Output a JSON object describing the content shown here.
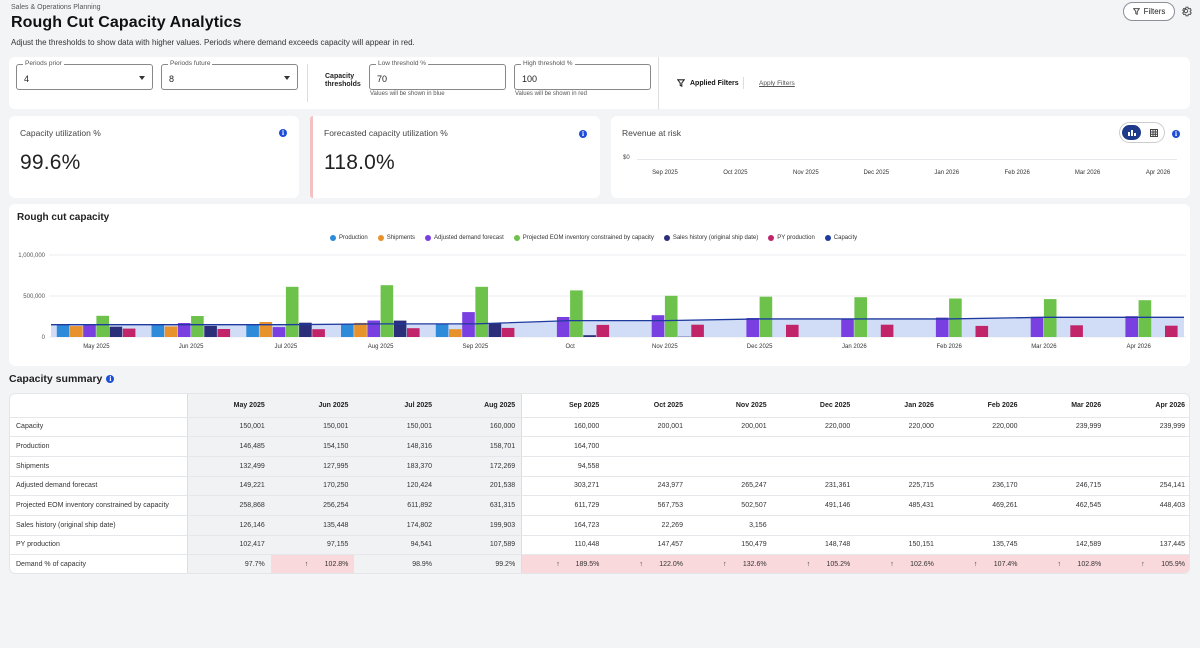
{
  "header": {
    "eyebrow": "Sales & Operations Planning",
    "title": "Rough Cut Capacity Analytics",
    "subtitle": "Adjust the thresholds to show data with higher values. Periods where demand exceeds capacity will appear in red.",
    "filters_label": "Filters"
  },
  "controls": {
    "periods_prior": {
      "label": "Periods prior",
      "value": "4"
    },
    "periods_future": {
      "label": "Periods future",
      "value": "8"
    },
    "capacity_thresholds_line1": "Capacity",
    "capacity_thresholds_line2": "thresholds",
    "low_threshold": {
      "label": "Low threshold %",
      "value": "70",
      "help": "Values will be shown in blue"
    },
    "high_threshold": {
      "label": "High threshold %",
      "value": "100",
      "help": "Values will be shown in red"
    },
    "applied_filters": "Applied Filters",
    "apply_filters": "Apply Filters"
  },
  "kpis": {
    "utilization": {
      "title": "Capacity utilization %",
      "value": "99.6%"
    },
    "forecasted": {
      "title": "Forecasted capacity utilization %",
      "value": "118.0%"
    },
    "revenue": {
      "title": "Revenue at risk",
      "y_label": "$0",
      "x_labels": [
        "Sep 2025",
        "Oct 2025",
        "Nov 2025",
        "Dec 2025",
        "Jan 2026",
        "Feb 2026",
        "Mar 2026",
        "Apr 2026"
      ]
    }
  },
  "colors": {
    "production": "#2e8bd9",
    "shipments": "#e8922c",
    "adjusted_demand": "#7a3fe0",
    "projected_eom": "#6cc24a",
    "sales_history": "#2b2f7a",
    "py_production": "#c2246a",
    "capacity": "#1e3a9e",
    "alert": "#f9d9dc"
  },
  "chart_data": {
    "type": "bar",
    "title": "Rough cut capacity",
    "categories": [
      "May 2025",
      "Jun 2025",
      "Jul 2025",
      "Aug 2025",
      "Sep 2025",
      "Oct",
      "Nov 2025",
      "Dec 2025",
      "Jan 2026",
      "Feb 2026",
      "Mar 2026",
      "Apr 2026"
    ],
    "ylim": [
      0,
      1000000
    ],
    "yticks": [
      "0",
      "500,000",
      "1,000,000"
    ],
    "series": [
      {
        "name": "Production",
        "key": "production",
        "values": [
          146485,
          154150,
          148316,
          158701,
          164700,
          null,
          null,
          null,
          null,
          null,
          null,
          null
        ]
      },
      {
        "name": "Shipments",
        "key": "shipments",
        "values": [
          132499,
          127995,
          183370,
          172269,
          94558,
          null,
          null,
          null,
          null,
          null,
          null,
          null
        ]
      },
      {
        "name": "Adjusted demand forecast",
        "key": "adjusted_demand",
        "values": [
          149221,
          170250,
          120424,
          201538,
          303271,
          243977,
          265247,
          231361,
          225715,
          236170,
          246715,
          254141
        ]
      },
      {
        "name": "Projected EOM inventory constrained by capacity",
        "key": "projected_eom",
        "values": [
          258868,
          256254,
          611892,
          631315,
          611729,
          567753,
          502507,
          491146,
          485431,
          469261,
          462545,
          448403
        ]
      },
      {
        "name": "Sales history (original ship date)",
        "key": "sales_history",
        "values": [
          126146,
          135448,
          174802,
          199903,
          164723,
          22269,
          3156,
          null,
          null,
          null,
          null,
          null
        ]
      },
      {
        "name": "PY production",
        "key": "py_production",
        "values": [
          102417,
          97155,
          94541,
          107589,
          110448,
          147457,
          150479,
          148748,
          150151,
          135745,
          142589,
          137445
        ]
      },
      {
        "name": "Capacity",
        "key": "capacity",
        "type": "area",
        "values": [
          150001,
          150001,
          150001,
          160000,
          160000,
          200001,
          200001,
          220000,
          220000,
          220000,
          239999,
          239999
        ]
      }
    ]
  },
  "summary": {
    "title": "Capacity summary",
    "columns": [
      "May 2025",
      "Jun 2025",
      "Jul 2025",
      "Aug 2025",
      "Sep 2025",
      "Oct 2025",
      "Nov 2025",
      "Dec 2025",
      "Jan 2026",
      "Feb 2026",
      "Mar 2026",
      "Apr 2026"
    ],
    "rows": [
      {
        "label": "Capacity",
        "values": [
          "150,001",
          "150,001",
          "150,001",
          "160,000",
          "160,000",
          "200,001",
          "200,001",
          "220,000",
          "220,000",
          "220,000",
          "239,999",
          "239,999"
        ]
      },
      {
        "label": "Production",
        "values": [
          "146,485",
          "154,150",
          "148,316",
          "158,701",
          "164,700",
          "",
          "",
          "",
          "",
          "",
          "",
          ""
        ]
      },
      {
        "label": "Shipments",
        "values": [
          "132,499",
          "127,995",
          "183,370",
          "172,269",
          "94,558",
          "",
          "",
          "",
          "",
          "",
          "",
          ""
        ]
      },
      {
        "label": "Adjusted demand forecast",
        "values": [
          "149,221",
          "170,250",
          "120,424",
          "201,538",
          "303,271",
          "243,977",
          "265,247",
          "231,361",
          "225,715",
          "236,170",
          "246,715",
          "254,141"
        ]
      },
      {
        "label": "Projected EOM inventory constrained by capacity",
        "values": [
          "258,868",
          "256,254",
          "611,892",
          "631,315",
          "611,729",
          "567,753",
          "502,507",
          "491,146",
          "485,431",
          "469,261",
          "462,545",
          "448,403"
        ]
      },
      {
        "label": "Sales history (original ship date)",
        "values": [
          "126,146",
          "135,448",
          "174,802",
          "199,903",
          "164,723",
          "22,269",
          "3,156",
          "",
          "",
          "",
          "",
          ""
        ]
      },
      {
        "label": "PY production",
        "values": [
          "102,417",
          "97,155",
          "94,541",
          "107,589",
          "110,448",
          "147,457",
          "150,479",
          "148,748",
          "150,151",
          "135,745",
          "142,589",
          "137,445"
        ]
      },
      {
        "label": "Demand % of capacity",
        "values": [
          "97.7%",
          "102.8%",
          "98.9%",
          "99.2%",
          "189.5%",
          "122.0%",
          "132.6%",
          "105.2%",
          "102.6%",
          "107.4%",
          "102.8%",
          "105.9%"
        ],
        "alert": [
          false,
          true,
          false,
          false,
          true,
          true,
          true,
          true,
          true,
          true,
          true,
          true
        ]
      }
    ]
  }
}
